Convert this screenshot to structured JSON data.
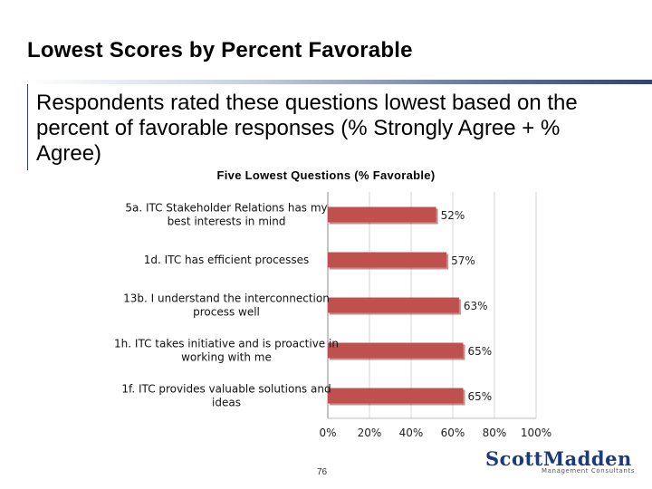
{
  "slide": {
    "title": "Lowest Scores by Percent Favorable",
    "subtitle": "Respondents rated these questions lowest based on the percent of favorable responses (% Strongly Agree + % Agree)",
    "page_number": "76"
  },
  "logo": {
    "name": "ScottMadden",
    "tagline": "Management Consultants"
  },
  "colors": {
    "bar": "#c0504d",
    "bar_shadow": "#8c3533",
    "title_rule": "#2f4377",
    "logo": "#1b3a7a"
  },
  "chart_data": {
    "type": "bar",
    "orientation": "horizontal",
    "title": "Five Lowest Questions (% Favorable)",
    "categories": [
      [
        "5a. ITC Stakeholder Relations has my",
        "best interests in mind"
      ],
      [
        "1d. ITC has efficient processes"
      ],
      [
        "13b. I understand the interconnection",
        "process well"
      ],
      [
        "1h. ITC takes initiative and is proactive in",
        "working with me"
      ],
      [
        "1f. ITC provides valuable solutions and",
        "ideas"
      ]
    ],
    "values": [
      52,
      57,
      63,
      65,
      65
    ],
    "value_labels": [
      "52%",
      "57%",
      "63%",
      "65%",
      "65%"
    ],
    "xlim": [
      0,
      100
    ],
    "xticks": [
      0,
      20,
      40,
      60,
      80,
      100
    ],
    "xtick_labels": [
      "0%",
      "20%",
      "40%",
      "60%",
      "80%",
      "100%"
    ],
    "xlabel": "",
    "ylabel": "",
    "grid": true,
    "legend": "none"
  }
}
